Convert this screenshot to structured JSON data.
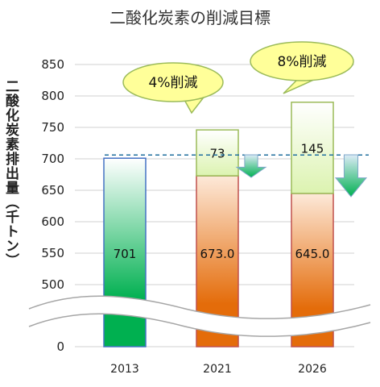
{
  "chart_data": {
    "type": "bar",
    "title": "二酸化炭素の削減目標",
    "ylabel": "二酸化炭素排出量（千トン）",
    "xlabel": "",
    "categories": [
      "2013",
      "2021",
      "2026"
    ],
    "ylim": [
      0,
      850
    ],
    "axis_break": [
      0,
      500
    ],
    "yticks": [
      "0",
      "500",
      "550",
      "600",
      "650",
      "700",
      "750",
      "800",
      "850"
    ],
    "reference_line": 701,
    "series": [
      {
        "values": [
          701,
          673,
          645
        ],
        "labels": [
          "701",
          "673.0",
          "645.0"
        ],
        "colors": [
          "#00b050",
          "#e46c0a",
          "#e46c0a"
        ]
      },
      {
        "values": [
          0,
          73,
          145
        ],
        "labels": [
          "",
          "73",
          "145"
        ],
        "color": "#ebf8cf"
      }
    ],
    "callouts": [
      {
        "category": "2021",
        "text": "4%削減"
      },
      {
        "category": "2026",
        "text": "8%削減"
      }
    ],
    "grid": true,
    "legend": "none"
  }
}
